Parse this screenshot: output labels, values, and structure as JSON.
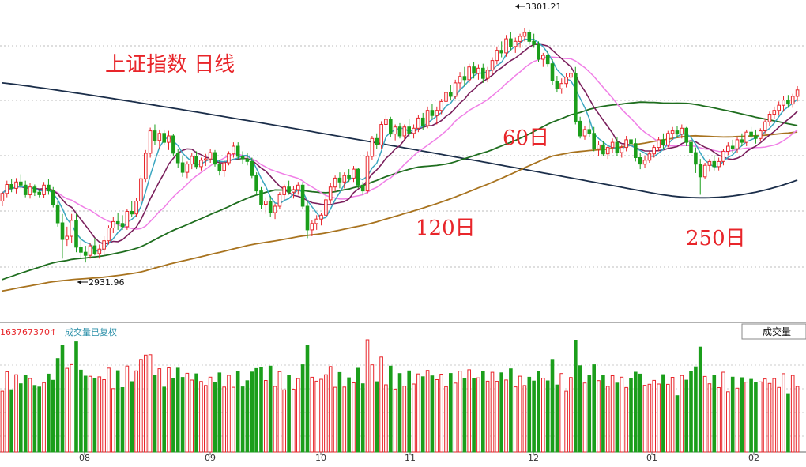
{
  "chart_data": {
    "type": "candlestick",
    "title": "上证指数  日线",
    "annotations": {
      "high": "3301.21",
      "low": "2931.96"
    },
    "ma_labels": [
      "60日",
      "120日",
      "250日"
    ],
    "x_ticks": [
      "08",
      "09",
      "10",
      "11",
      "12",
      "01",
      "02"
    ],
    "volume_panel": {
      "value_text": "163767370↑",
      "note": "成交量已复权",
      "button": "成交量"
    },
    "colors": {
      "up": "#e8252a",
      "down": "#1b9e1b",
      "ma5": "#3aa6c0",
      "ma10": "#7a1f5c",
      "ma20": "#f07ee6",
      "ma60": "#1f6e1f",
      "ma120": "#a8731f",
      "ma250": "#1b2e4a",
      "title": "#e8252a",
      "volume_note": "#2a8fa8",
      "volume_value": "#e8252a"
    },
    "price_range": [
      2860,
      3320
    ],
    "days": 185,
    "candles": [
      [
        3030,
        3045,
        3022,
        3042
      ],
      [
        3042,
        3062,
        3036,
        3056
      ],
      [
        3056,
        3064,
        3044,
        3050
      ],
      [
        3050,
        3066,
        3042,
        3060
      ],
      [
        3060,
        3072,
        3050,
        3055
      ],
      [
        3055,
        3062,
        3036,
        3040
      ],
      [
        3040,
        3058,
        3034,
        3052
      ],
      [
        3052,
        3056,
        3038,
        3044
      ],
      [
        3044,
        3048,
        3036,
        3040
      ],
      [
        3040,
        3060,
        3035,
        3055
      ],
      [
        3055,
        3064,
        3040,
        3046
      ],
      [
        3046,
        3052,
        3020,
        3024
      ],
      [
        3024,
        3030,
        2990,
        2996
      ],
      [
        2996,
        3010,
        2940,
        2970
      ],
      [
        2970,
        2990,
        2960,
        2975
      ],
      [
        2975,
        3010,
        2965,
        3000
      ],
      [
        3000,
        3010,
        2950,
        2958
      ],
      [
        2958,
        2975,
        2940,
        2950
      ],
      [
        2950,
        2960,
        2934,
        2945
      ],
      [
        2945,
        2965,
        2940,
        2960
      ],
      [
        2960,
        2972,
        2945,
        2948
      ],
      [
        2948,
        2962,
        2940,
        2955
      ],
      [
        2955,
        2975,
        2945,
        2968
      ],
      [
        2968,
        2992,
        2962,
        2988
      ],
      [
        2988,
        3005,
        2980,
        2998
      ],
      [
        2998,
        3012,
        2985,
        2995
      ],
      [
        2995,
        3008,
        2985,
        2990
      ],
      [
        2990,
        3018,
        2985,
        3014
      ],
      [
        3014,
        3030,
        3005,
        3010
      ],
      [
        3010,
        3035,
        3005,
        3030
      ],
      [
        3030,
        3070,
        3025,
        3065
      ],
      [
        3065,
        3110,
        3060,
        3105
      ],
      [
        3105,
        3145,
        3098,
        3140
      ],
      [
        3140,
        3150,
        3118,
        3125
      ],
      [
        3125,
        3142,
        3112,
        3136
      ],
      [
        3136,
        3142,
        3118,
        3122
      ],
      [
        3122,
        3140,
        3110,
        3132
      ],
      [
        3132,
        3135,
        3100,
        3105
      ],
      [
        3105,
        3112,
        3082,
        3090
      ],
      [
        3090,
        3100,
        3068,
        3075
      ],
      [
        3075,
        3092,
        3066,
        3088
      ],
      [
        3088,
        3105,
        3080,
        3100
      ],
      [
        3100,
        3108,
        3080,
        3084
      ],
      [
        3084,
        3098,
        3078,
        3094
      ],
      [
        3094,
        3104,
        3085,
        3096
      ],
      [
        3096,
        3112,
        3090,
        3106
      ],
      [
        3106,
        3110,
        3084,
        3088
      ],
      [
        3088,
        3095,
        3070,
        3078
      ],
      [
        3078,
        3094,
        3068,
        3090
      ],
      [
        3090,
        3108,
        3086,
        3104
      ],
      [
        3104,
        3122,
        3098,
        3116
      ],
      [
        3116,
        3122,
        3095,
        3100
      ],
      [
        3100,
        3108,
        3088,
        3096
      ],
      [
        3096,
        3105,
        3086,
        3092
      ],
      [
        3092,
        3098,
        3066,
        3070
      ],
      [
        3070,
        3075,
        3040,
        3046
      ],
      [
        3046,
        3052,
        3018,
        3025
      ],
      [
        3025,
        3036,
        3010,
        3030
      ],
      [
        3030,
        3038,
        3005,
        3012
      ],
      [
        3012,
        3026,
        3002,
        3022
      ],
      [
        3022,
        3044,
        3018,
        3040
      ],
      [
        3040,
        3056,
        3032,
        3052
      ],
      [
        3052,
        3062,
        3040,
        3044
      ],
      [
        3044,
        3054,
        3034,
        3048
      ],
      [
        3048,
        3060,
        3040,
        3055
      ],
      [
        3055,
        3060,
        3018,
        3022
      ],
      [
        3022,
        3030,
        2972,
        2985
      ],
      [
        2985,
        3000,
        2975,
        2995
      ],
      [
        2995,
        3008,
        2985,
        3002
      ],
      [
        3002,
        3012,
        2992,
        3008
      ],
      [
        3008,
        3038,
        3004,
        3032
      ],
      [
        3032,
        3058,
        3026,
        3052
      ],
      [
        3052,
        3070,
        3045,
        3066
      ],
      [
        3066,
        3075,
        3050,
        3060
      ],
      [
        3060,
        3075,
        3050,
        3070
      ],
      [
        3070,
        3080,
        3060,
        3066
      ],
      [
        3066,
        3085,
        3060,
        3080
      ],
      [
        3080,
        3082,
        3050,
        3055
      ],
      [
        3055,
        3060,
        3040,
        3046
      ],
      [
        3046,
        3108,
        3042,
        3100
      ],
      [
        3100,
        3132,
        3095,
        3128
      ],
      [
        3128,
        3136,
        3112,
        3118
      ],
      [
        3118,
        3155,
        3112,
        3150
      ],
      [
        3150,
        3165,
        3140,
        3158
      ],
      [
        3158,
        3162,
        3130,
        3135
      ],
      [
        3135,
        3150,
        3125,
        3146
      ],
      [
        3146,
        3152,
        3128,
        3132
      ],
      [
        3132,
        3150,
        3126,
        3146
      ],
      [
        3146,
        3158,
        3130,
        3136
      ],
      [
        3136,
        3150,
        3128,
        3144
      ],
      [
        3144,
        3165,
        3138,
        3160
      ],
      [
        3160,
        3168,
        3142,
        3148
      ],
      [
        3148,
        3178,
        3144,
        3172
      ],
      [
        3172,
        3182,
        3158,
        3164
      ],
      [
        3164,
        3178,
        3150,
        3172
      ],
      [
        3172,
        3190,
        3166,
        3186
      ],
      [
        3186,
        3205,
        3180,
        3200
      ],
      [
        3200,
        3212,
        3188,
        3194
      ],
      [
        3194,
        3220,
        3190,
        3215
      ],
      [
        3215,
        3232,
        3205,
        3225
      ],
      [
        3225,
        3240,
        3210,
        3220
      ],
      [
        3220,
        3245,
        3215,
        3240
      ],
      [
        3240,
        3248,
        3222,
        3230
      ],
      [
        3230,
        3244,
        3220,
        3238
      ],
      [
        3238,
        3245,
        3215,
        3222
      ],
      [
        3222,
        3240,
        3216,
        3235
      ],
      [
        3235,
        3255,
        3228,
        3250
      ],
      [
        3250,
        3272,
        3244,
        3266
      ],
      [
        3266,
        3280,
        3255,
        3262
      ],
      [
        3262,
        3290,
        3256,
        3284
      ],
      [
        3284,
        3295,
        3266,
        3272
      ],
      [
        3272,
        3286,
        3262,
        3280
      ],
      [
        3280,
        3292,
        3270,
        3288
      ],
      [
        3288,
        3301,
        3280,
        3294
      ],
      [
        3294,
        3298,
        3275,
        3280
      ],
      [
        3280,
        3292,
        3270,
        3275
      ],
      [
        3275,
        3280,
        3248,
        3252
      ],
      [
        3252,
        3262,
        3240,
        3258
      ],
      [
        3258,
        3266,
        3240,
        3245
      ],
      [
        3245,
        3252,
        3212,
        3218
      ],
      [
        3218,
        3226,
        3200,
        3206
      ],
      [
        3206,
        3222,
        3198,
        3214
      ],
      [
        3214,
        3230,
        3208,
        3224
      ],
      [
        3224,
        3236,
        3216,
        3230
      ],
      [
        3230,
        3240,
        3150,
        3155
      ],
      [
        3155,
        3162,
        3128,
        3132
      ],
      [
        3132,
        3148,
        3126,
        3142
      ],
      [
        3142,
        3156,
        3130,
        3136
      ],
      [
        3136,
        3146,
        3108,
        3112
      ],
      [
        3112,
        3124,
        3100,
        3118
      ],
      [
        3118,
        3124,
        3100,
        3104
      ],
      [
        3104,
        3118,
        3096,
        3114
      ],
      [
        3114,
        3128,
        3106,
        3122
      ],
      [
        3122,
        3130,
        3100,
        3106
      ],
      [
        3106,
        3118,
        3098,
        3114
      ],
      [
        3114,
        3132,
        3108,
        3126
      ],
      [
        3126,
        3134,
        3115,
        3120
      ],
      [
        3120,
        3128,
        3092,
        3098
      ],
      [
        3098,
        3106,
        3080,
        3088
      ],
      [
        3088,
        3100,
        3082,
        3094
      ],
      [
        3094,
        3108,
        3090,
        3104
      ],
      [
        3104,
        3118,
        3098,
        3114
      ],
      [
        3114,
        3130,
        3108,
        3126
      ],
      [
        3126,
        3136,
        3112,
        3118
      ],
      [
        3118,
        3140,
        3114,
        3136
      ],
      [
        3136,
        3146,
        3126,
        3140
      ],
      [
        3140,
        3148,
        3130,
        3135
      ],
      [
        3135,
        3150,
        3128,
        3144
      ],
      [
        3144,
        3146,
        3116,
        3122
      ],
      [
        3122,
        3128,
        3100,
        3106
      ],
      [
        3106,
        3114,
        3074,
        3088
      ],
      [
        3088,
        3096,
        3040,
        3068
      ],
      [
        3068,
        3090,
        3064,
        3086
      ],
      [
        3086,
        3096,
        3076,
        3092
      ],
      [
        3092,
        3102,
        3078,
        3084
      ],
      [
        3084,
        3098,
        3078,
        3092
      ],
      [
        3092,
        3112,
        3086,
        3108
      ],
      [
        3108,
        3122,
        3102,
        3116
      ],
      [
        3116,
        3126,
        3106,
        3112
      ],
      [
        3112,
        3130,
        3106,
        3126
      ],
      [
        3126,
        3136,
        3116,
        3122
      ],
      [
        3122,
        3142,
        3116,
        3138
      ],
      [
        3138,
        3146,
        3126,
        3132
      ],
      [
        3132,
        3142,
        3120,
        3128
      ],
      [
        3128,
        3144,
        3124,
        3140
      ],
      [
        3140,
        3158,
        3136,
        3154
      ],
      [
        3154,
        3170,
        3148,
        3166
      ],
      [
        3166,
        3178,
        3158,
        3172
      ],
      [
        3172,
        3186,
        3164,
        3180
      ],
      [
        3180,
        3194,
        3170,
        3188
      ],
      [
        3188,
        3196,
        3176,
        3182
      ],
      [
        3182,
        3198,
        3176,
        3194
      ],
      [
        3194,
        3210,
        3186,
        3204
      ]
    ],
    "volume": [],
    "ma_start": {
      "ma60": 2905,
      "ma120": 2888,
      "ma250": 3215
    }
  }
}
